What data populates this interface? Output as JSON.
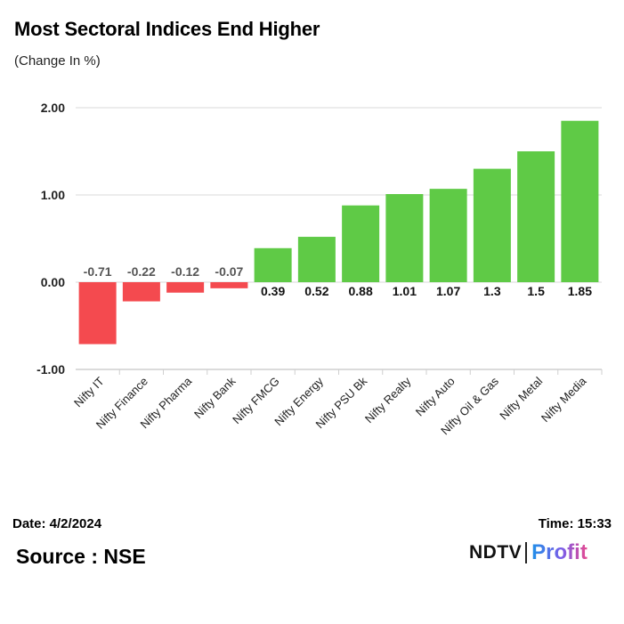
{
  "header": {
    "title": "Most Sectoral Indices End Higher",
    "subtitle": "(Change In %)"
  },
  "chart_data": {
    "type": "bar",
    "title": "Most Sectoral Indices End Higher",
    "subtitle": "(Change In %)",
    "xlabel": "",
    "ylabel": "",
    "categories": [
      "Nifty IT",
      "Nifty Finance",
      "Nifty Pharma",
      "Nifty Bank",
      "Nifty FMCG",
      "Nifty Energy",
      "Nifty PSU Bk",
      "Nifty Realty",
      "Nifty Auto",
      "Nifty Oil & Gas",
      "Nifty Metal",
      "Nifty Media"
    ],
    "values": [
      -0.71,
      -0.22,
      -0.12,
      -0.07,
      0.39,
      0.52,
      0.88,
      1.01,
      1.07,
      1.3,
      1.5,
      1.85
    ],
    "value_labels": [
      "-0.71",
      "-0.22",
      "-0.12",
      "-0.07",
      "0.39",
      "0.52",
      "0.88",
      "1.01",
      "1.07",
      "1.3",
      "1.5",
      "1.85"
    ],
    "ylim": [
      -1.0,
      2.0
    ],
    "yticks": [
      2.0,
      1.0,
      0.0,
      -1.0
    ],
    "ytick_labels": [
      "2.00",
      "1.00",
      "0.00",
      "-1.00"
    ],
    "grid": true,
    "colors": {
      "positive": "#5fca46",
      "negative": "#f44a4f"
    }
  },
  "footer": {
    "date": "Date: 4/2/2024",
    "time": "Time: 15:33",
    "source": "Source : NSE",
    "brand_left": "NDTV",
    "brand_right": "Profit"
  }
}
